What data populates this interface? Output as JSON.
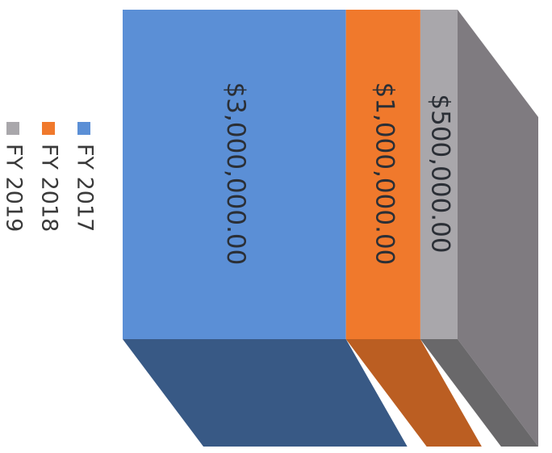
{
  "chart_data": {
    "type": "bar",
    "stacked": true,
    "three_d": true,
    "orientation": "rotated-90-clockwise",
    "categories": [
      ""
    ],
    "series": [
      {
        "name": "FY 2017",
        "values": [
          3000000
        ],
        "label": "$3,000,000.00",
        "color": "#5b8fd6"
      },
      {
        "name": "FY 2018",
        "values": [
          1000000
        ],
        "label": "$1,000,000.00",
        "color": "#f0792c"
      },
      {
        "name": "FY 2019",
        "values": [
          500000
        ],
        "label": "$500,000.00",
        "color": "#a9a7ab"
      }
    ],
    "title": "",
    "xlabel": "",
    "ylabel": "",
    "legend": "left",
    "grid": false
  }
}
